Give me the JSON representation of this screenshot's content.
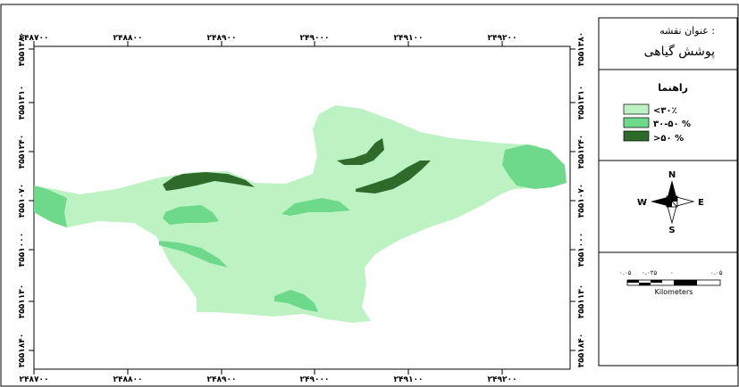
{
  "map": {
    "top_x_labels": [
      "۲۴۸۷۰۰",
      "۲۴۸۸۰۰",
      "۲۴۸۹۰۰",
      "۲۴۹۰۰۰",
      "۲۴۹۱۰۰",
      "۲۴۹۲۰۰"
    ],
    "bottom_x_labels": [
      "۲۴۸۷۰۰",
      "۲۴۸۸۰۰",
      "۲۴۸۹۰۰",
      "۲۴۹۰۰۰",
      "۲۴۹۱۰۰",
      "۲۴۹۲۰۰"
    ],
    "left_y_labels": [
      "۳۵۵۱۳۸۰",
      "۳۵۵۱۳۱۰",
      "۳۵۵۱۲۴۰",
      "۳۵۵۱۰۷۰",
      "۳۵۵۱۰۰۰",
      "۳۵۵۱۱۳۰",
      "۳۵۵۱۸۴۰"
    ],
    "right_y_labels": [
      "۳۵۵۱۳۸۰",
      "۳۵۵۱۳۱۰",
      "۳۵۵۱۲۴۰",
      "۳۵۵۱۰۷۰",
      "۳۵۵۱۰۰۰",
      "۳۵۵۱۱۳۰",
      "۳۵۵۱۸۴۰"
    ],
    "colors": {
      "low": "#bdf3c3",
      "mid": "#6ed98a",
      "high": "#2e6b2b"
    }
  },
  "panel": {
    "title_label": "عنوان نقشه :",
    "title_value": "پوشش گیاهی",
    "legend_heading": "راهنما",
    "legend": [
      {
        "label": "<۳۰٪",
        "color": "#bdf3c3"
      },
      {
        "label": "۳۰-۵۰ %",
        "color": "#6ed98a"
      },
      {
        "label": ">۵۰ %",
        "color": "#2e6b2b"
      }
    ],
    "north": {
      "n": "N",
      "s": "S",
      "e": "E",
      "w": "W"
    },
    "scale": {
      "labels": [
        "۰.۰۵",
        "۰.۰۲۵",
        "۰",
        "۰.۰۵"
      ],
      "unit": "Kilometers"
    }
  }
}
